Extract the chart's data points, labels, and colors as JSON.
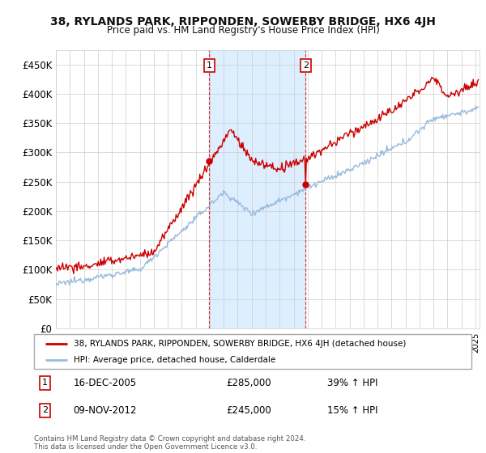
{
  "title_line1": "38, RYLANDS PARK, RIPPONDEN, SOWERBY BRIDGE, HX6 4JH",
  "title_line2": "Price paid vs. HM Land Registry's House Price Index (HPI)",
  "ylim": [
    0,
    475000
  ],
  "yticks": [
    0,
    50000,
    100000,
    150000,
    200000,
    250000,
    300000,
    350000,
    400000,
    450000
  ],
  "sale1_date": "16-DEC-2005",
  "sale1_price": 285000,
  "sale1_hpi": "39%",
  "sale1_x_year": 2005.96,
  "sale2_date": "09-NOV-2012",
  "sale2_price": 245000,
  "sale2_hpi": "15%",
  "sale2_x_year": 2012.86,
  "legend_line1": "38, RYLANDS PARK, RIPPONDEN, SOWERBY BRIDGE, HX6 4JH (detached house)",
  "legend_line2": "HPI: Average price, detached house, Calderdale",
  "footer": "Contains HM Land Registry data © Crown copyright and database right 2024.\nThis data is licensed under the Open Government Licence v3.0.",
  "property_color": "#cc0000",
  "hpi_color": "#99bbdd",
  "shade_color": "#ddeeff",
  "background_color": "#ffffff",
  "grid_color": "#cccccc",
  "xlim_start": 1995,
  "xlim_end": 2025.3
}
